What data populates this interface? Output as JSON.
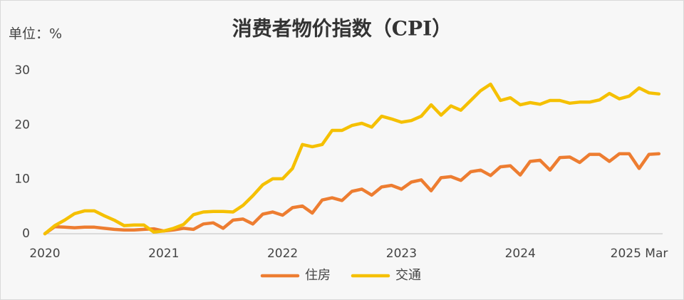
{
  "chart_data": {
    "type": "line",
    "title": "消费者物价指数（CPI）",
    "y_label": "单位：%",
    "categories": [
      "2020",
      null,
      null,
      null,
      null,
      null,
      null,
      null,
      null,
      null,
      null,
      null,
      "2021",
      null,
      null,
      null,
      null,
      null,
      null,
      null,
      null,
      null,
      null,
      null,
      "2022",
      null,
      null,
      null,
      null,
      null,
      null,
      null,
      null,
      null,
      null,
      null,
      "2023",
      null,
      null,
      null,
      null,
      null,
      null,
      null,
      null,
      null,
      null,
      null,
      "2024",
      null,
      null,
      null,
      null,
      null,
      null,
      null,
      null,
      null,
      null,
      null,
      "2025 Mar",
      null,
      null
    ],
    "series": [
      {
        "name": "住房",
        "color": "#ed7d31",
        "values": [
          0,
          1.3,
          1.2,
          1.1,
          1.2,
          1.2,
          1.0,
          0.8,
          0.7,
          0.7,
          0.8,
          0.9,
          0.5,
          0.7,
          1.0,
          0.8,
          1.8,
          2.0,
          1.0,
          2.5,
          2.7,
          1.8,
          3.6,
          4.0,
          3.4,
          4.8,
          5.1,
          3.8,
          6.2,
          6.6,
          6.1,
          7.8,
          8.2,
          7.1,
          8.6,
          8.9,
          8.2,
          9.5,
          9.9,
          7.9,
          10.3,
          10.5,
          9.8,
          11.4,
          11.7,
          10.7,
          12.3,
          12.5,
          10.8,
          13.3,
          13.5,
          11.7,
          14.0,
          14.1,
          13.1,
          14.6,
          14.6,
          13.3,
          14.7,
          14.7,
          12.0,
          14.6,
          14.7
        ]
      },
      {
        "name": "交通",
        "color": "#f5c000",
        "values": [
          0,
          1.5,
          2.5,
          3.7,
          4.2,
          4.2,
          3.3,
          2.5,
          1.5,
          1.6,
          1.6,
          0.3,
          0.5,
          1.0,
          1.7,
          3.5,
          4.0,
          4.1,
          4.1,
          4.0,
          5.2,
          7.0,
          9.0,
          10.1,
          10.1,
          12.0,
          16.4,
          16.0,
          16.4,
          19.0,
          19.0,
          19.9,
          20.3,
          19.6,
          21.6,
          21.1,
          20.5,
          20.8,
          21.6,
          23.7,
          21.8,
          23.5,
          22.7,
          24.5,
          26.3,
          27.5,
          24.5,
          25.0,
          23.7,
          24.1,
          23.8,
          24.5,
          24.5,
          24.0,
          24.2,
          24.2,
          24.6,
          25.8,
          24.8,
          25.3,
          26.8,
          25.9,
          25.7
        ]
      }
    ],
    "ylim": [
      0,
      30
    ],
    "yticks": [
      0,
      10,
      20,
      30
    ],
    "grid": false,
    "legend": "bottom"
  }
}
